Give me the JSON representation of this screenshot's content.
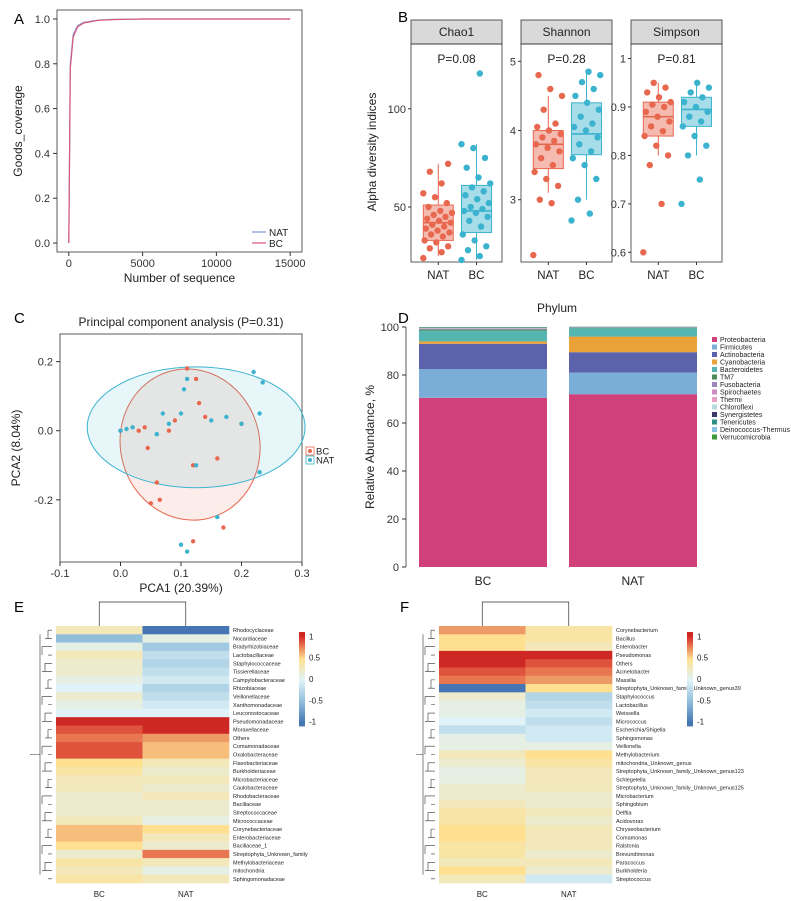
{
  "panels": {
    "a": {
      "letter": "A"
    },
    "b": {
      "letter": "B"
    },
    "c": {
      "letter": "C"
    },
    "d": {
      "letter": "D"
    },
    "e": {
      "letter": "E"
    },
    "f": {
      "letter": "F"
    }
  },
  "chart_data": [
    {
      "panel": "A",
      "type": "line",
      "title": "",
      "xlabel": "Number of sequence",
      "ylabel": "Goods_coverage",
      "xlim": [
        -800,
        15800
      ],
      "ylim": [
        -0.04,
        1.04
      ],
      "xticks": [
        0,
        5000,
        10000,
        15000
      ],
      "yticks": [
        0.0,
        0.2,
        0.4,
        0.6,
        0.8,
        1.0
      ],
      "series": [
        {
          "name": "NAT",
          "color": "#7f9ad6",
          "x": [
            0,
            100,
            300,
            600,
            1000,
            2000,
            3000,
            5000,
            15000
          ],
          "y": [
            0.0,
            0.8,
            0.93,
            0.97,
            0.985,
            0.995,
            0.998,
            1.0,
            1.0
          ]
        },
        {
          "name": "BC",
          "color": "#d9577a",
          "x": [
            0,
            100,
            300,
            600,
            1000,
            2000,
            3000,
            5000,
            15000
          ],
          "y": [
            0.0,
            0.78,
            0.92,
            0.965,
            0.982,
            0.994,
            0.997,
            1.0,
            1.0
          ]
        }
      ],
      "legend": [
        "NAT",
        "BC"
      ]
    },
    {
      "panel": "B",
      "type": "box",
      "ylabel": "Alpha diversity indices",
      "groups": [
        "NAT",
        "BC"
      ],
      "colors": {
        "NAT": "#e8684f",
        "BC": "#3bb3cf"
      },
      "facets": [
        {
          "name": "Chao1",
          "pvalue": "P=0.08",
          "ylim": [
            22,
            133
          ],
          "yticks": [
            50,
            100
          ],
          "stats": {
            "NAT": [
              25,
              33,
              42,
              51,
              72
            ],
            "BC": [
              23,
              37,
              48,
              61,
              82
            ]
          },
          "points": {
            "NAT": [
              24,
              27,
              29,
              30,
              32,
              33,
              35,
              36,
              37,
              38,
              39,
              40,
              41,
              42,
              43,
              44,
              45,
              46,
              47,
              48,
              50,
              52,
              55,
              57,
              62,
              68,
              72
            ],
            "BC": [
              23,
              25,
              28,
              30,
              33,
              36,
              40,
              43,
              45,
              47,
              48,
              49,
              50,
              52,
              54,
              56,
              58,
              60,
              62,
              65,
              70,
              75,
              80,
              82,
              118
            ]
          }
        },
        {
          "name": "Shannon",
          "pvalue": "P=0.28",
          "ylim": [
            2.1,
            5.25
          ],
          "yticks": [
            3,
            4,
            5
          ],
          "stats": {
            "NAT": [
              3.1,
              3.45,
              3.8,
              4.0,
              4.5
            ],
            "BC": [
              3.0,
              3.65,
              3.95,
              4.4,
              4.85
            ]
          },
          "points": {
            "NAT": [
              2.2,
              2.95,
              3.0,
              3.2,
              3.3,
              3.4,
              3.5,
              3.6,
              3.7,
              3.75,
              3.8,
              3.85,
              3.9,
              3.95,
              4.0,
              4.05,
              4.1,
              4.3,
              4.5,
              4.6,
              4.8
            ],
            "BC": [
              2.7,
              2.8,
              3.0,
              3.3,
              3.5,
              3.6,
              3.7,
              3.8,
              3.9,
              4.0,
              4.05,
              4.1,
              4.2,
              4.3,
              4.4,
              4.5,
              4.6,
              4.7,
              4.8,
              4.85
            ]
          }
        },
        {
          "name": "Simpson",
          "pvalue": "P=0.81",
          "ylim": [
            0.58,
            1.03
          ],
          "yticks": [
            0.6,
            0.7,
            0.8,
            0.9,
            1.0
          ],
          "stats": {
            "NAT": [
              0.8,
              0.84,
              0.88,
              0.91,
              0.95
            ],
            "BC": [
              0.8,
              0.86,
              0.895,
              0.92,
              0.95
            ]
          },
          "points": {
            "NAT": [
              0.6,
              0.7,
              0.78,
              0.8,
              0.82,
              0.84,
              0.85,
              0.86,
              0.87,
              0.88,
              0.89,
              0.9,
              0.905,
              0.91,
              0.92,
              0.93,
              0.94,
              0.95
            ],
            "BC": [
              0.7,
              0.75,
              0.8,
              0.82,
              0.84,
              0.86,
              0.87,
              0.88,
              0.89,
              0.9,
              0.91,
              0.92,
              0.93,
              0.94,
              0.95
            ]
          }
        }
      ]
    },
    {
      "panel": "C",
      "type": "scatter",
      "title": "Principal component analysis (P=0.31)",
      "xlabel": "PCA1 (20.39%)",
      "ylabel": "PCA2 (8.04%)",
      "xlim": [
        -0.1,
        0.3
      ],
      "ylim": [
        -0.38,
        0.28
      ],
      "xticks": [
        -0.1,
        0.0,
        0.1,
        0.2,
        0.3
      ],
      "yticks": [
        -0.2,
        0.0,
        0.2
      ],
      "legend": [
        "BC",
        "NAT"
      ],
      "colors": {
        "BC": "#e8684f",
        "NAT": "#3bb3cf"
      },
      "series": [
        {
          "name": "BC",
          "x": [
            0.03,
            0.045,
            0.065,
            0.09,
            0.11,
            0.12,
            0.125,
            0.14,
            0.16,
            0.2,
            0.0,
            0.04,
            0.06,
            0.08,
            0.13,
            0.17,
            0.12,
            0.05
          ],
          "y": [
            0.0,
            -0.05,
            -0.2,
            0.03,
            0.18,
            -0.1,
            0.15,
            0.04,
            -0.08,
            0.02,
            0.0,
            0.01,
            -0.15,
            0.0,
            0.08,
            -0.28,
            -0.32,
            -0.21
          ]
        },
        {
          "name": "NAT",
          "x": [
            0.0,
            0.01,
            0.02,
            0.07,
            0.08,
            0.1,
            0.105,
            0.11,
            0.125,
            0.15,
            0.175,
            0.2,
            0.22,
            0.23,
            0.235,
            0.23,
            0.16,
            0.1,
            0.11,
            0.06
          ],
          "y": [
            0.0,
            0.005,
            0.01,
            0.05,
            0.02,
            0.05,
            0.12,
            0.15,
            -0.1,
            0.03,
            0.04,
            0.02,
            0.17,
            0.05,
            0.14,
            -0.12,
            -0.25,
            -0.33,
            -0.35,
            -0.01
          ]
        }
      ],
      "ellipses": [
        {
          "name": "BC",
          "cx": 0.115,
          "cy": -0.04,
          "rx": 0.115,
          "ry": 0.22,
          "rotate": -15
        },
        {
          "name": "NAT",
          "cx": 0.125,
          "cy": 0.01,
          "rx": 0.18,
          "ry": 0.175,
          "rotate": 0
        }
      ]
    },
    {
      "panel": "D",
      "type": "stacked_bar",
      "title": "Phylum",
      "ylabel": "Relative Abundance, %",
      "ylim": [
        0,
        100
      ],
      "yticks": [
        0,
        20,
        40,
        60,
        80,
        100
      ],
      "categories": [
        "BC",
        "NAT"
      ],
      "series": [
        {
          "name": "Proteobacteria",
          "color": "#d0407a",
          "values": [
            70.5,
            72.0
          ]
        },
        {
          "name": "Firmicutes",
          "color": "#7aaed8",
          "values": [
            12.0,
            9.0
          ]
        },
        {
          "name": "Actinobacteria",
          "color": "#5d62ad",
          "values": [
            10.5,
            8.5
          ]
        },
        {
          "name": "Cyanobacteria",
          "color": "#e8a238",
          "values": [
            1.0,
            6.5
          ]
        },
        {
          "name": "Bacteroidetes",
          "color": "#55b6b1",
          "values": [
            4.5,
            3.5
          ]
        },
        {
          "name": "TM7",
          "color": "#4e8a5a",
          "values": [
            0.5,
            0.1
          ]
        },
        {
          "name": "Fusobacteria",
          "color": "#9c88b9",
          "values": [
            0.3,
            0.1
          ]
        },
        {
          "name": "Spirochaetes",
          "color": "#cc8ec0",
          "values": [
            0.1,
            0.1
          ]
        },
        {
          "name": "Thermi",
          "color": "#e6a0c4",
          "values": [
            0.1,
            0.05
          ]
        },
        {
          "name": "Chloroflexi",
          "color": "#b4dce1",
          "values": [
            0.1,
            0.05
          ]
        },
        {
          "name": "Synergistetes",
          "color": "#3a3a6a",
          "values": [
            0.1,
            0.05
          ]
        },
        {
          "name": "Tenericutes",
          "color": "#2e8f86",
          "values": [
            0.1,
            0.05
          ]
        },
        {
          "name": "Deinococcus-Thermus",
          "color": "#88c2e3",
          "values": [
            0.1,
            0.05
          ]
        },
        {
          "name": "Verrucomicrobia",
          "color": "#3f9a3a",
          "values": [
            0.1,
            0.05
          ]
        }
      ]
    },
    {
      "panel": "E",
      "type": "heatmap",
      "columns": [
        "BC",
        "NAT"
      ],
      "colorbar": {
        "ticks": [
          "1",
          "0.5",
          "0",
          "-0.5",
          "-1"
        ]
      },
      "rows": [
        "Rhodocyclaceae",
        "Nocardiaceae",
        "Bradyrhizobiaceae",
        "Lactobacillaceae",
        "Staphylococcaceae",
        "Tissierellaceae",
        "Campylobacteraceae",
        "Rhizobiaceae",
        "Veillonellaceae",
        "Xanthomonadaceae",
        "Leuconostocaceae",
        "Pseudomonadaceae",
        "Moraxellaceae",
        "Others",
        "Comamonadaceae",
        "Oxalobacteraceae",
        "Flavobacteriaceae",
        "Burkholderiaceae",
        "Microbacteriaceae",
        "Caulobacteraceae",
        "Rhodobacteraceae",
        "Bacillaceae",
        "Streptococcaceae",
        "Micrococcaceae",
        "Corynebacteriaceae",
        "Enterobacteriaceae",
        "Bacillaceae_1",
        "Streptophyta_Unknown_family",
        "Methylobacteriaceae",
        "mitochondria",
        "Sphingomonadaceae"
      ],
      "values": [
        [
          0.3,
          -1.0
        ],
        [
          -0.5,
          0.1
        ],
        [
          0.1,
          -0.4
        ],
        [
          0.3,
          -0.2
        ],
        [
          0.2,
          -0.3
        ],
        [
          0.2,
          -0.2
        ],
        [
          0.1,
          -0.1
        ],
        [
          0.0,
          -0.3
        ],
        [
          0.2,
          -0.2
        ],
        [
          0.1,
          -0.1
        ],
        [
          0.0,
          0.0
        ],
        [
          1.1,
          1.2
        ],
        [
          0.9,
          1.0
        ],
        [
          0.8,
          0.7
        ],
        [
          0.9,
          0.6
        ],
        [
          0.9,
          0.6
        ],
        [
          0.5,
          0.3
        ],
        [
          0.4,
          0.2
        ],
        [
          0.3,
          0.3
        ],
        [
          0.3,
          0.2
        ],
        [
          0.2,
          0.3
        ],
        [
          0.2,
          0.2
        ],
        [
          0.2,
          0.2
        ],
        [
          0.3,
          0.1
        ],
        [
          0.6,
          0.5
        ],
        [
          0.6,
          0.3
        ],
        [
          0.5,
          0.2
        ],
        [
          0.2,
          0.8
        ],
        [
          0.4,
          0.3
        ],
        [
          0.3,
          0.1
        ],
        [
          0.4,
          0.3
        ]
      ]
    },
    {
      "panel": "F",
      "type": "heatmap",
      "columns": [
        "BC",
        "NAT"
      ],
      "colorbar": {
        "ticks": [
          "1",
          "0.5",
          "0",
          "-0.5",
          "-1"
        ]
      },
      "rows": [
        "Corynebacterium",
        "Bacillus",
        "Enterobacter",
        "Pseudomonas",
        "Others",
        "Acinetobacter",
        "Massilia",
        "Streptophyta_Unknown_family_Unknown_genus39",
        "Staphylococcus",
        "Lactobacillus",
        "Weissella",
        "Micrococcus",
        "Escherichia/Shigella",
        "Sphingomonas",
        "Veillonella",
        "Methylobacterium",
        "mitochondria_Unknown_genus",
        "Streptophyta_Unknown_family_Unknown_genus123",
        "Schlegelella",
        "Streptophyta_Unknown_family_Unknown_genus125",
        "Microbacterium",
        "Sphingobium",
        "Delftia",
        "Acidovorax",
        "Chryseobacterium",
        "Comamonas",
        "Ralstonia",
        "Brevundimonas",
        "Paracoccus",
        "Burkholderia",
        "Streptococcus"
      ],
      "values": [
        [
          0.7,
          0.4
        ],
        [
          0.5,
          0.4
        ],
        [
          0.5,
          0.3
        ],
        [
          1.2,
          1.1
        ],
        [
          1.1,
          0.9
        ],
        [
          0.9,
          0.8
        ],
        [
          0.8,
          0.7
        ],
        [
          -1.0,
          0.5
        ],
        [
          0.2,
          -0.3
        ],
        [
          0.1,
          -0.2
        ],
        [
          0.1,
          -0.1
        ],
        [
          0.0,
          -0.2
        ],
        [
          -0.2,
          -0.1
        ],
        [
          0.1,
          -0.1
        ],
        [
          0.1,
          0.1
        ],
        [
          0.3,
          0.5
        ],
        [
          0.2,
          0.4
        ],
        [
          0.1,
          0.3
        ],
        [
          0.1,
          0.3
        ],
        [
          0.2,
          0.3
        ],
        [
          0.2,
          0.2
        ],
        [
          0.3,
          0.2
        ],
        [
          0.4,
          0.3
        ],
        [
          0.4,
          0.2
        ],
        [
          0.5,
          0.3
        ],
        [
          0.5,
          0.3
        ],
        [
          0.4,
          0.3
        ],
        [
          0.4,
          0.2
        ],
        [
          0.3,
          0.3
        ],
        [
          0.5,
          0.2
        ],
        [
          0.3,
          -0.1
        ]
      ]
    }
  ]
}
